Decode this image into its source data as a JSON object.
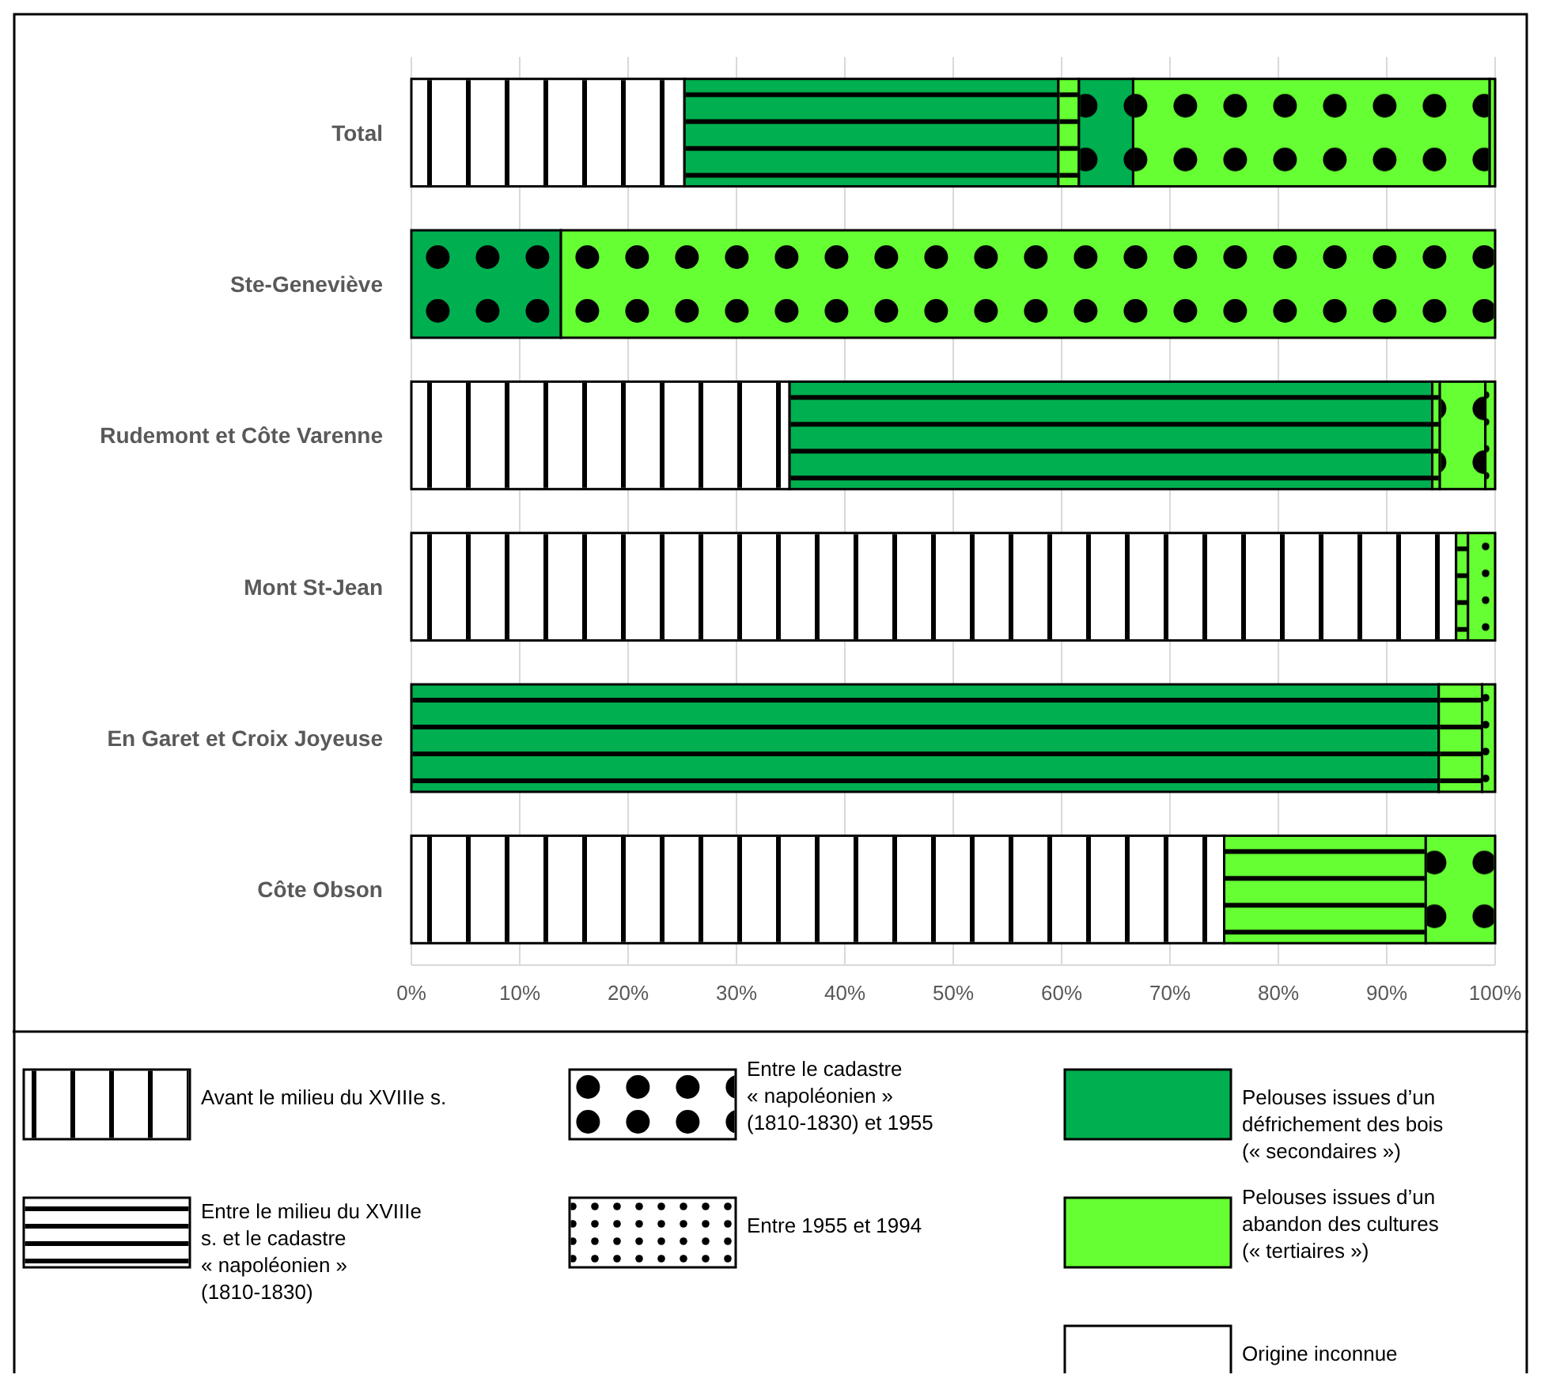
{
  "chart_data": {
    "type": "bar",
    "orientation": "horizontal",
    "stacked": true,
    "categories": [
      "Total",
      "Ste-Geneviève",
      "Rudemont et Côte Varenne",
      "Mont St-Jean",
      "En Garet et Croix Joyeuse",
      "Côte Obson"
    ],
    "series": [
      {
        "color": "#ffffff",
        "values": [
          25.2,
          null,
          34.9,
          96.4,
          null,
          75.0
        ]
      },
      {
        "color": "#00b050",
        "values": [
          34.5,
          null,
          59.3,
          null,
          94.8,
          null
        ]
      },
      {
        "color": "#66ff33",
        "values": [
          1.9,
          null,
          0.7,
          1.1,
          4.0,
          18.6
        ]
      },
      {
        "color": "#00b050",
        "values": [
          5.0,
          13.8,
          null,
          null,
          null,
          null
        ]
      },
      {
        "color": "#66ff33",
        "values": [
          32.9,
          86.2,
          4.2,
          null,
          null,
          6.4
        ]
      },
      {
        "color": "#66ff33",
        "values": [
          0.5,
          null,
          0.9,
          2.5,
          1.2,
          null
        ]
      }
    ],
    "xlim": [
      0,
      100
    ],
    "xticks": [
      {
        "value": 0,
        "label": "0%"
      },
      {
        "value": 10,
        "label": "10%"
      },
      {
        "value": 20,
        "label": "20%"
      },
      {
        "value": 30,
        "label": "30%"
      },
      {
        "value": 40,
        "label": "40%"
      },
      {
        "value": 50,
        "label": "50%"
      },
      {
        "value": 60,
        "label": "60%"
      },
      {
        "value": 70,
        "label": "70%"
      },
      {
        "value": 80,
        "label": "80%"
      },
      {
        "value": 90,
        "label": "90%"
      },
      {
        "value": 100,
        "label": "100%"
      }
    ],
    "grid": "x",
    "annotations": [
      "Avant le milieu du XVIIIe s.",
      "Entre le milieu du XVIIIe s. et le cadastre « napoléonien » (1810-1830)",
      "Entre le cadastre « napoléonien » (1810-1830) et 1955",
      "Entre 1955 et 1994",
      "Pelouses issues d’un défrichement des bois (« secondaires »)",
      "Pelouses issues d’un abandon des cultures (« tertiaires »)",
      "Origine inconnue"
    ]
  }
}
